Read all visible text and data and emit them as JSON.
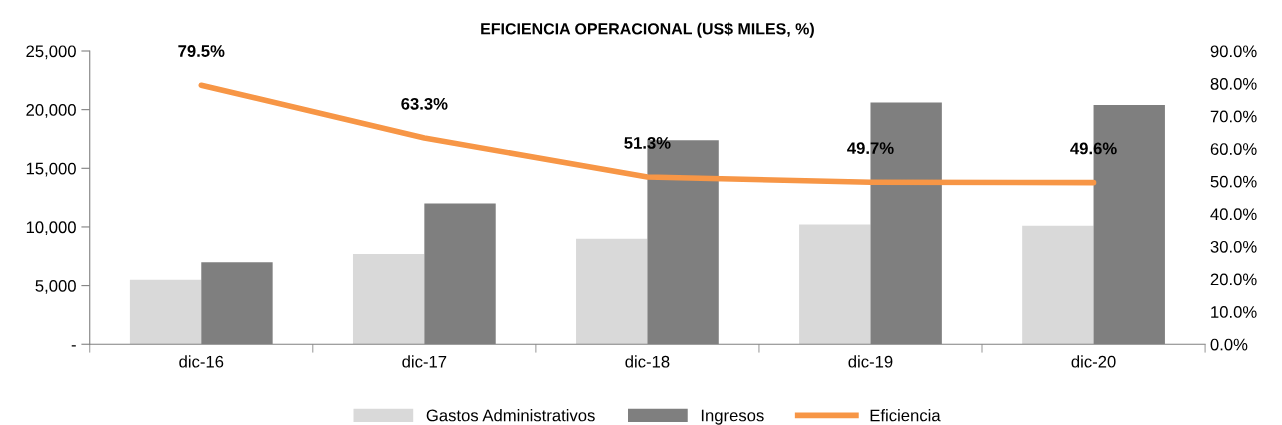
{
  "chart_data": {
    "type": "bar",
    "title": "EFICIENCIA OPERACIONAL (US$ MILES, %)",
    "categories": [
      "dic-16",
      "dic-17",
      "dic-18",
      "dic-19",
      "dic-20"
    ],
    "series": [
      {
        "name": "Gastos Administrativos",
        "color": "#d9d9d9",
        "values": [
          5500,
          7700,
          9000,
          10200,
          10100
        ]
      },
      {
        "name": "Ingresos",
        "color": "#7f7f7f",
        "values": [
          7000,
          12000,
          17400,
          20600,
          20400
        ]
      },
      {
        "name": "Eficiencia",
        "type": "line",
        "axis": "y2",
        "color": "#f79646",
        "values": [
          79.5,
          63.3,
          51.3,
          49.7,
          49.6
        ],
        "value_labels": [
          "79.5%",
          "63.3%",
          "51.3%",
          "49.7%",
          "49.6%"
        ]
      }
    ],
    "ylim": [
      0,
      25000
    ],
    "yticks": [
      {
        "value": 0,
        "label": "-"
      },
      {
        "value": 5000,
        "label": "5,000"
      },
      {
        "value": 10000,
        "label": "10,000"
      },
      {
        "value": 15000,
        "label": "15,000"
      },
      {
        "value": 20000,
        "label": "20,000"
      },
      {
        "value": 25000,
        "label": "25,000"
      }
    ],
    "y2lim": [
      0,
      90
    ],
    "y2ticks": [
      {
        "value": 0,
        "label": "0.0%"
      },
      {
        "value": 10,
        "label": "10.0%"
      },
      {
        "value": 20,
        "label": "20.0%"
      },
      {
        "value": 30,
        "label": "30.0%"
      },
      {
        "value": 40,
        "label": "40.0%"
      },
      {
        "value": 50,
        "label": "50.0%"
      },
      {
        "value": 60,
        "label": "60.0%"
      },
      {
        "value": 70,
        "label": "70.0%"
      },
      {
        "value": 80,
        "label": "80.0%"
      },
      {
        "value": 90,
        "label": "90.0%"
      }
    ],
    "grid": false,
    "legend": "bottom",
    "marker": "none",
    "line_style": "solid"
  }
}
